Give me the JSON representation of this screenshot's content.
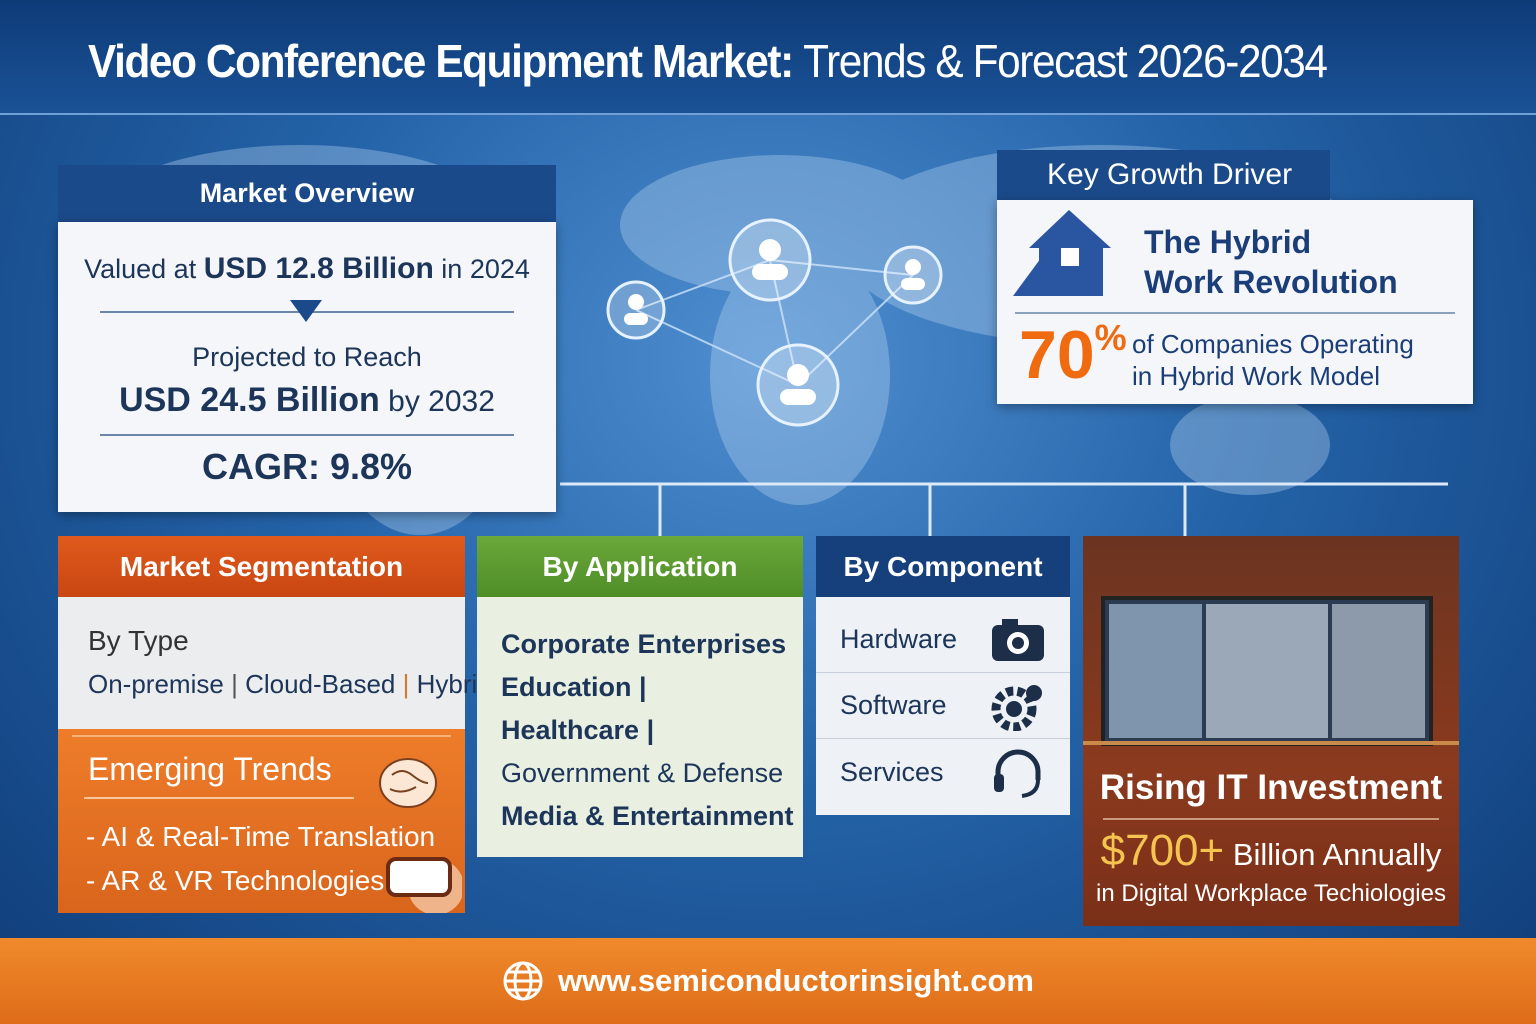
{
  "title": {
    "bold": "Video Conference Equipment Market:",
    "light": "Trends & Forecast 2026-2034"
  },
  "market_overview": {
    "header": "Market Overview",
    "valued_prefix": "Valued at",
    "valued_value": "USD 12.8 Billion",
    "valued_suffix": "in 2024",
    "projected_label": "Projected to Reach",
    "projected_value": "USD 24.5 Billion",
    "projected_suffix": "by 2032",
    "cagr": "CAGR: 9.8%"
  },
  "key_growth": {
    "header": "Key Growth Driver",
    "headline_1": "The Hybrid",
    "headline_2": "Work Revolution",
    "stat": "70",
    "stat_unit": "%",
    "stat_text_1": "of Companies Operating",
    "stat_text_2": "in Hybrid Work Model"
  },
  "segmentation": {
    "header": "Market Segmentation",
    "by_type_label": "By Type",
    "types": [
      "On-premise",
      "Cloud-Based",
      "Hybrid"
    ],
    "separator": "|"
  },
  "trends": {
    "header": "Emerging Trends",
    "items": [
      "- AI & Real-Time Translation",
      "- AR & VR Technologies"
    ]
  },
  "application": {
    "header": "By Application",
    "items": [
      "Corporate Enterprises",
      "Education |",
      "Healthcare |",
      "Government & Defense",
      "Media & Entertainment"
    ]
  },
  "component": {
    "header": "By Component",
    "items": [
      {
        "label": "Hardware",
        "icon": "camera-icon"
      },
      {
        "label": "Software",
        "icon": "gear-icon"
      },
      {
        "label": "Services",
        "icon": "headset-icon"
      }
    ]
  },
  "it_investment": {
    "header": "Rising IT Investment",
    "amount": "$700+",
    "amount_text": "Billion Annually",
    "sub": "in Digital Workplace Techiologies"
  },
  "footer": {
    "url": "www.semiconductorinsight.com",
    "icon": "globe-icon"
  },
  "colors": {
    "navy": "#1b4a8a",
    "orange": "#e05a1c",
    "green": "#5f9c33",
    "accent_orange": "#f06a10",
    "gold": "#f5c450"
  }
}
